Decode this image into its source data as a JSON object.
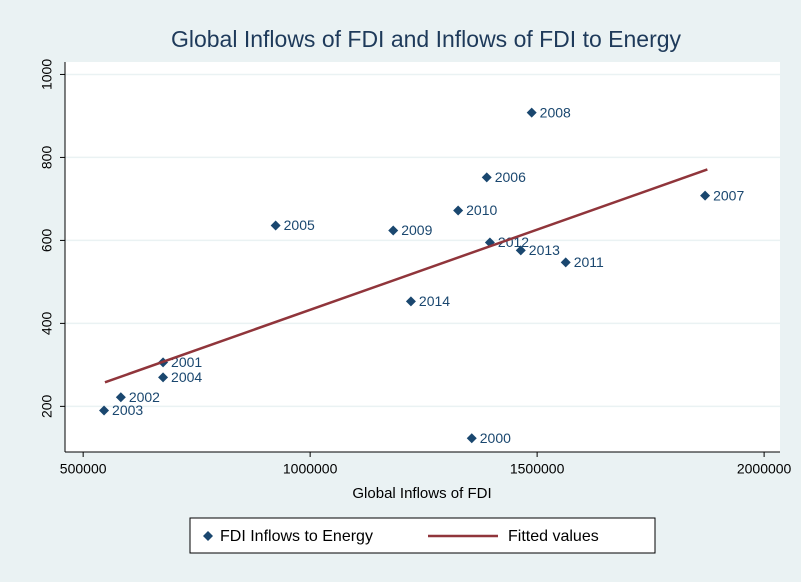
{
  "chart_data": {
    "type": "scatter",
    "title": "Global Inflows of FDI and Inflows of FDI to Energy",
    "x_label": "Global Inflows of FDI",
    "xlim": [
      460000,
      2035000
    ],
    "ylim": [
      90,
      1030
    ],
    "xticks": [
      500000,
      1000000,
      1500000,
      2000000
    ],
    "yticks": [
      200,
      400,
      600,
      800,
      1000
    ],
    "grid": true,
    "legend": "bottom",
    "series": [
      {
        "name": "FDI Inflows to Energy",
        "style": "markers",
        "color": "#1a476f",
        "x": [
          1356000,
          676000,
          583000,
          546000,
          676000,
          924000,
          1389000,
          1870000,
          1488000,
          1183000,
          1326000,
          1563000,
          1396000,
          1464000,
          1222000
        ],
        "values": [
          123,
          306,
          222,
          190,
          270,
          636,
          752,
          708,
          908,
          624,
          672,
          547,
          595,
          576,
          453
        ],
        "point_labels": [
          "2000",
          "2001",
          "2002",
          "2003",
          "2004",
          "2005",
          "2006",
          "2007",
          "2008",
          "2009",
          "2010",
          "2011",
          "2012",
          "2013",
          "2014"
        ]
      },
      {
        "name": "Fitted values",
        "style": "line",
        "color": "#90353b",
        "x": [
          548000,
          1875000
        ],
        "values": [
          258,
          771
        ]
      }
    ]
  }
}
